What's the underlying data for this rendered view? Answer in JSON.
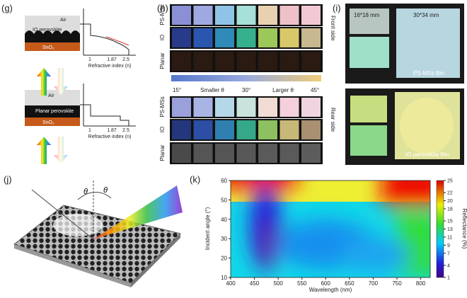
{
  "panel_g": {
    "label": "(g)",
    "top": {
      "air": "Air",
      "layer": "IO perovskite",
      "substrate": "SnO₂"
    },
    "bottom": {
      "air": "Air",
      "layer": "Planar perovskite",
      "substrate": "SnO₂"
    },
    "axis_label": "Refractive index (n)",
    "ticks": [
      "1",
      "1.87",
      "2.5"
    ]
  },
  "panel_h": {
    "label": "(h)",
    "rows": [
      "PS-MSs",
      "IO",
      "Planar"
    ],
    "front": "Front side",
    "rear": "Rear side",
    "angle_bar": [
      "15°",
      "Smaller θ",
      "30°",
      "Larger θ",
      "45°"
    ]
  },
  "panel_i": {
    "label": "(i)",
    "small_size": "16*18 mm",
    "large_size": "30*34 mm",
    "top_caption": "PS-MSs film",
    "bottom_caption": "IO perovskite film"
  },
  "panel_j": {
    "label": "(j)",
    "angles": [
      "θ",
      "θ"
    ]
  },
  "panel_k": {
    "label": "(k)",
    "xlabel": "Wavelength (nm)",
    "ylabel": "Incident angle (°)",
    "colorbar_label": "Reflectance (%)",
    "xlim": [
      400,
      820
    ],
    "xticks": [
      400,
      450,
      500,
      550,
      600,
      650,
      700,
      750,
      800
    ],
    "ylim": [
      10,
      60
    ],
    "yticks": [
      10,
      20,
      30,
      40,
      50,
      60
    ],
    "clim": [
      1,
      25
    ],
    "cticks": [
      1,
      4,
      7,
      9,
      11,
      13,
      15,
      18,
      20,
      22,
      25
    ]
  }
}
